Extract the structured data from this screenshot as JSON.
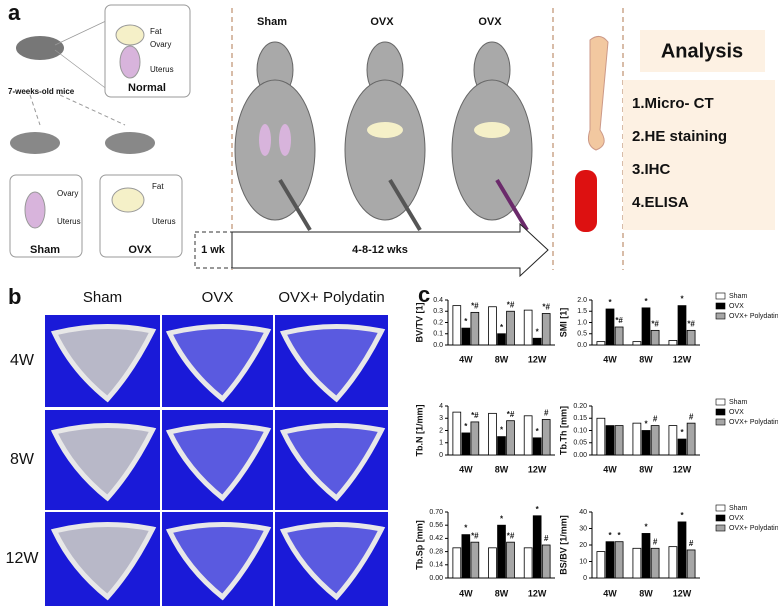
{
  "panel_labels": [
    "a",
    "b",
    "c"
  ],
  "panel_a": {
    "mouse_label": "7-weeks-old mice",
    "normal_box": {
      "labels": [
        "Fat",
        "Ovary",
        "Uterus"
      ],
      "title": "Normal"
    },
    "sham_box": {
      "labels": [
        "Ovary",
        "Uterus"
      ],
      "title": "Sham"
    },
    "ovx_box": {
      "labels": [
        "Fat",
        "Uterus"
      ],
      "title": "OVX"
    },
    "groups": [
      "Sham",
      "OVX",
      "OVX"
    ],
    "timeline": [
      "1 wk",
      "4-8-12 wks"
    ],
    "analysis": {
      "title": "Analysis",
      "items": [
        "1.Micro- CT",
        "2.HE staining",
        "3.IHC",
        "4.ELISA"
      ]
    }
  },
  "panel_b": {
    "columns": [
      "Sham",
      "OVX",
      "OVX+ Polydatin"
    ],
    "rows": [
      "4W",
      "8W",
      "12W"
    ]
  },
  "chart_data": [
    {
      "type": "bar",
      "ylabel": "BV/TV [1]",
      "categories": [
        "4W",
        "8W",
        "12W"
      ],
      "series": [
        {
          "color": "#ffffff",
          "values": [
            0.35,
            0.34,
            0.31
          ],
          "annotations": [
            null,
            null,
            null
          ]
        },
        {
          "color": "#000000",
          "values": [
            0.15,
            0.1,
            0.06
          ],
          "annotations": [
            "*",
            "*",
            "*"
          ]
        },
        {
          "color": "#a6a6a6",
          "values": [
            0.29,
            0.3,
            0.28
          ],
          "annotations": [
            "*#",
            "*#",
            "*#"
          ]
        }
      ],
      "ylim": [
        0,
        0.4
      ],
      "yticks": [
        {
          "value": 0,
          "label": "0.0"
        },
        0.1,
        0.2,
        0.3,
        0.4
      ],
      "legend": false
    },
    {
      "type": "bar",
      "ylabel": "SMI [1]",
      "categories": [
        "4W",
        "8W",
        "12W"
      ],
      "series": [
        {
          "name": "Sham",
          "color": "#ffffff",
          "values": [
            0.15,
            0.15,
            0.2
          ],
          "annotations": [
            null,
            null,
            null
          ]
        },
        {
          "name": "OVX",
          "color": "#000000",
          "values": [
            1.6,
            1.65,
            1.75
          ],
          "annotations": [
            "*",
            "*",
            "*"
          ]
        },
        {
          "name": "OVX+ Polydatin",
          "color": "#a6a6a6",
          "values": [
            0.8,
            0.65,
            0.65
          ],
          "annotations": [
            "*#",
            "*#",
            "*#"
          ]
        }
      ],
      "ylim": [
        0,
        2
      ],
      "yticks": [
        {
          "value": 0,
          "label": "0.0"
        },
        0.5,
        {
          "value": 1,
          "label": "1.0"
        },
        1.5,
        {
          "value": 2,
          "label": "2.0"
        }
      ],
      "legend": true
    },
    {
      "type": "bar",
      "ylabel": "Tb.N [1/mm]",
      "categories": [
        "4W",
        "8W",
        "12W"
      ],
      "series": [
        {
          "color": "#ffffff",
          "values": [
            3.5,
            3.4,
            3.2
          ],
          "annotations": [
            null,
            null,
            null
          ]
        },
        {
          "color": "#000000",
          "values": [
            1.8,
            1.5,
            1.4
          ],
          "annotations": [
            "*",
            "*",
            "*"
          ]
        },
        {
          "color": "#a6a6a6",
          "values": [
            2.7,
            2.8,
            2.9
          ],
          "annotations": [
            "*#",
            "*#",
            "#"
          ]
        }
      ],
      "ylim": [
        0,
        4
      ],
      "yticks": [
        0,
        1,
        2,
        3,
        4
      ],
      "legend": false
    },
    {
      "type": "bar",
      "ylabel": "Tb.Th [mm]",
      "categories": [
        "4W",
        "8W",
        "12W"
      ],
      "series": [
        {
          "name": "Sham",
          "color": "#ffffff",
          "values": [
            0.15,
            0.13,
            0.12
          ],
          "annotations": [
            null,
            null,
            null
          ]
        },
        {
          "name": "OVX",
          "color": "#000000",
          "values": [
            0.12,
            0.1,
            0.065
          ],
          "annotations": [
            null,
            "*",
            "*"
          ]
        },
        {
          "name": "OVX+ Polydatin",
          "color": "#a6a6a6",
          "values": [
            0.12,
            0.12,
            0.13
          ],
          "annotations": [
            null,
            "#",
            "#"
          ]
        }
      ],
      "ylim": [
        0,
        0.2
      ],
      "yticks": [
        {
          "value": 0,
          "label": "0.00"
        },
        0.05,
        {
          "value": 0.1,
          "label": "0.10"
        },
        0.15,
        {
          "value": 0.2,
          "label": "0.20"
        }
      ],
      "legend": true
    },
    {
      "type": "bar",
      "ylabel": "Tb.Sp [mm]",
      "categories": [
        "4W",
        "8W",
        "12W"
      ],
      "series": [
        {
          "color": "#ffffff",
          "values": [
            0.32,
            0.32,
            0.32
          ],
          "annotations": [
            null,
            null,
            null
          ]
        },
        {
          "color": "#000000",
          "values": [
            0.46,
            0.56,
            0.66
          ],
          "annotations": [
            "*",
            "*",
            "*"
          ]
        },
        {
          "color": "#a6a6a6",
          "values": [
            0.38,
            0.38,
            0.35
          ],
          "annotations": [
            "*#",
            "*#",
            "#"
          ]
        }
      ],
      "ylim": [
        0,
        0.7
      ],
      "yticks": [
        {
          "value": 0,
          "label": "0.00"
        },
        0.14,
        0.28,
        0.42,
        0.56,
        {
          "value": 0.7,
          "label": "0.70"
        }
      ],
      "legend": false
    },
    {
      "type": "bar",
      "ylabel": "BS/BV [1/mm]",
      "categories": [
        "4W",
        "8W",
        "12W"
      ],
      "series": [
        {
          "name": "Sham",
          "color": "#ffffff",
          "values": [
            16,
            18,
            19
          ],
          "annotations": [
            null,
            null,
            null
          ]
        },
        {
          "name": "OVX",
          "color": "#000000",
          "values": [
            22,
            27,
            34
          ],
          "annotations": [
            "*",
            "*",
            "*"
          ]
        },
        {
          "name": "OVX+ Polydatin",
          "color": "#a6a6a6",
          "values": [
            22,
            18,
            17
          ],
          "annotations": [
            "*",
            "#",
            "#"
          ]
        }
      ],
      "ylim": [
        0,
        40
      ],
      "yticks": [
        0,
        10,
        20,
        30,
        40
      ],
      "legend": true
    }
  ]
}
